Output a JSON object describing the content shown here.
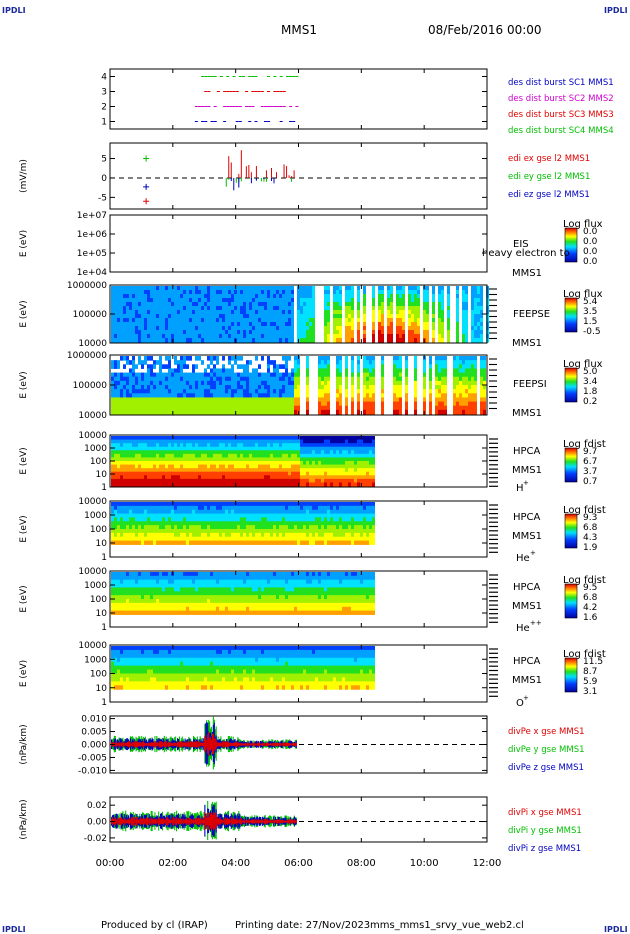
{
  "header": {
    "logo_left": "IPDLI",
    "logo_right": "IPDLI",
    "spacecraft": "MMS1",
    "date": "08/Feb/2016 00:00"
  },
  "footer": {
    "logo_left": "IPDLI",
    "logo_right": "IPDLI",
    "credit": "Produced by cl (IRAP)",
    "printed": "Printing date: 27/Nov/2023",
    "file": "mms_mms1_srvy_vue_web2.cl"
  },
  "chart_data": {
    "type": "line",
    "x_ticks": [
      "00:00",
      "02:00",
      "04:00",
      "06:00",
      "08:00",
      "10:00",
      "12:00"
    ],
    "x_range_hours": [
      0,
      12
    ],
    "panels": [
      {
        "id": "burst",
        "kind": "line",
        "ylim": [
          0.5,
          4.5
        ],
        "yticks": [
          "1",
          "2",
          "3",
          "4"
        ],
        "legend": [
          {
            "text": "des dist burst SC1 MMS1",
            "color": "#0000c0"
          },
          {
            "text": "des dist burst SC2 MMS2",
            "color": "#d000d0"
          },
          {
            "text": "des dist burst SC3 MMS3",
            "color": "#e00000"
          },
          {
            "text": "des dist burst SC4 MMS4",
            "color": "#00c000"
          }
        ],
        "series": [
          {
            "level": 1,
            "start_h": 2.7,
            "end_h": 5.9,
            "color": "#0000c0"
          },
          {
            "level": 2,
            "start_h": 2.7,
            "end_h": 5.9,
            "color": "#d000d0"
          },
          {
            "level": 3,
            "start_h": 2.7,
            "end_h": 5.9,
            "color": "#e00000"
          },
          {
            "level": 4,
            "start_h": 2.7,
            "end_h": 5.9,
            "color": "#00c000"
          }
        ]
      },
      {
        "id": "edi",
        "kind": "line",
        "ylabel": "(mV/m)",
        "ylim": [
          -8,
          9
        ],
        "yticks": [
          "5",
          "0",
          "-5"
        ],
        "legend": [
          {
            "text": "edi ex gse l2 MMS1",
            "color": "#e00000"
          },
          {
            "text": "edi ey gse l2 MMS1",
            "color": "#00c000"
          },
          {
            "text": "edi ez gse l2 MMS1",
            "color": "#0000c0"
          }
        ],
        "markers": [
          {
            "h": 1.15,
            "y": 5,
            "color": "#00c000"
          },
          {
            "h": 1.15,
            "y": -2.3,
            "color": "#0000c0"
          },
          {
            "h": 1.15,
            "y": -6,
            "color": "#e00000"
          }
        ]
      },
      {
        "id": "eis",
        "kind": "spectrogram",
        "ylabel": "E (eV)",
        "log": true,
        "yticks": [
          "1e+07",
          "1e+06",
          "1e+05",
          "1e+04"
        ],
        "labels": [
          "EIS",
          "MMS1"
        ],
        "overlay": "heavy electron to",
        "cbar": {
          "title": "Log flux",
          "ticks": [
            "0.0",
            "0.0",
            "0.0",
            "0.0"
          ]
        }
      },
      {
        "id": "feepse",
        "kind": "spectrogram",
        "ylabel": "E (eV)",
        "yticks": [
          "1000000",
          "100000",
          "10000"
        ],
        "labels": [
          "FEEPSE",
          "MMS1"
        ],
        "cbar": {
          "title": "Log flux",
          "ticks": [
            "5.4",
            "3.5",
            "1.5",
            "-0.5"
          ]
        }
      },
      {
        "id": "feepsi",
        "kind": "spectrogram",
        "ylabel": "E (eV)",
        "yticks": [
          "1000000",
          "100000",
          "10000"
        ],
        "labels": [
          "FEEPSI",
          "MMS1"
        ],
        "cbar": {
          "title": "Log flux",
          "ticks": [
            "5.0",
            "3.4",
            "1.8",
            "0.2"
          ]
        }
      },
      {
        "id": "hpca_h",
        "kind": "spectrogram",
        "ylabel": "E (eV)",
        "yticks": [
          "10000",
          "1000",
          "100",
          "10",
          "1"
        ],
        "labels": [
          "HPCA",
          "MMS1"
        ],
        "species": "H",
        "charge": "+",
        "cbar": {
          "title": "Log fdist",
          "ticks": [
            "9.7",
            "6.7",
            "3.7",
            "0.7"
          ]
        }
      },
      {
        "id": "hpca_he",
        "kind": "spectrogram",
        "ylabel": "E (eV)",
        "yticks": [
          "10000",
          "1000",
          "100",
          "10",
          "1"
        ],
        "labels": [
          "HPCA",
          "MMS1"
        ],
        "species": "He",
        "charge": "+",
        "cbar": {
          "title": "Log fdist",
          "ticks": [
            "9.3",
            "6.8",
            "4.3",
            "1.9"
          ]
        }
      },
      {
        "id": "hpca_he2",
        "kind": "spectrogram",
        "ylabel": "E (eV)",
        "yticks": [
          "10000",
          "1000",
          "100",
          "10",
          "1"
        ],
        "labels": [
          "HPCA",
          "MMS1"
        ],
        "species": "He",
        "charge": "++",
        "cbar": {
          "title": "Log fdist",
          "ticks": [
            "9.5",
            "6.8",
            "4.2",
            "1.6"
          ]
        }
      },
      {
        "id": "hpca_o",
        "kind": "spectrogram",
        "ylabel": "E (eV)",
        "yticks": [
          "10000",
          "1000",
          "100",
          "10",
          "1"
        ],
        "labels": [
          "HPCA",
          "MMS1"
        ],
        "species": "O",
        "charge": "+",
        "cbar": {
          "title": "Log fdist",
          "ticks": [
            "11.5",
            "8.7",
            "5.9",
            "3.1"
          ]
        }
      },
      {
        "id": "divpe",
        "kind": "line",
        "ylabel": "(nPa/km)",
        "ylim": [
          -0.01,
          0.01
        ],
        "yticks": [
          "0.010",
          "0.005",
          "0.000",
          "-0.005",
          "-0.010"
        ],
        "legend": [
          {
            "text": "divPe x gse MMS1",
            "color": "#e00000"
          },
          {
            "text": "divPe y gse MMS1",
            "color": "#00c000"
          },
          {
            "text": "divPe z gse MMS1",
            "color": "#0000c0"
          }
        ]
      },
      {
        "id": "divpi",
        "kind": "line",
        "ylabel": "(nPa/km)",
        "ylim": [
          -0.025,
          0.03
        ],
        "yticks": [
          "0.02",
          "0.00",
          "-0.02"
        ],
        "legend": [
          {
            "text": "divPi x gse MMS1",
            "color": "#e00000"
          },
          {
            "text": "divPi y gse MMS1",
            "color": "#00c000"
          },
          {
            "text": "divPi z gse MMS1",
            "color": "#0000c0"
          }
        ]
      }
    ]
  }
}
